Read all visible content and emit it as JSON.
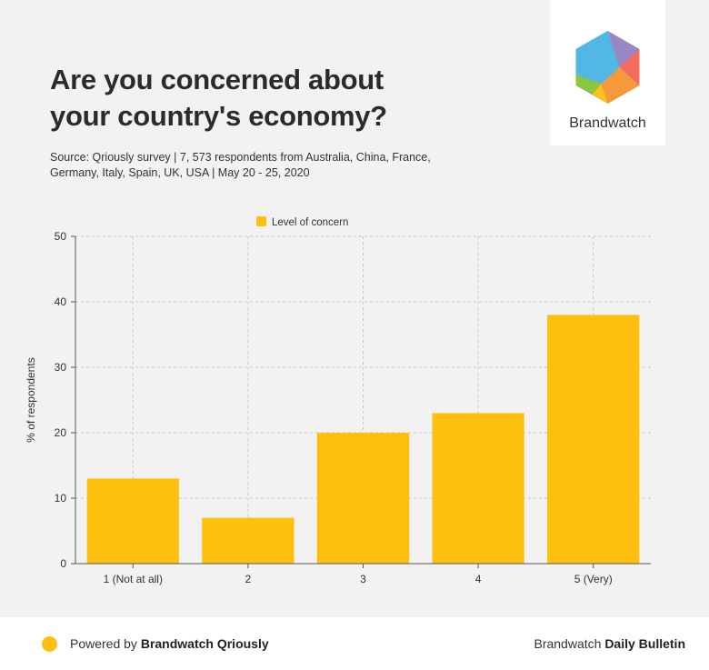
{
  "header": {
    "title_line1": "Are you concerned about",
    "title_line2": "your country's economy?",
    "source": "Source: Qriously survey | 7, 573 respondents from Australia, China, France, Germany, Italy, Spain, UK, USA | May 20 - 25, 2020"
  },
  "logo": {
    "name": "Brandwatch"
  },
  "footer": {
    "powered_prefix": "Powered by ",
    "powered_brand": "Brandwatch Qriously",
    "right_prefix": "Brandwatch ",
    "right_brand": "Daily Bulletin",
    "dot_color": "#ffbf0f"
  },
  "chart_data": {
    "type": "bar",
    "categories": [
      "1 (Not at all)",
      "2",
      "3",
      "4",
      "5 (Very)"
    ],
    "series": [
      {
        "name": "Level of concern",
        "values": [
          13,
          7,
          20,
          23,
          38
        ],
        "color": "#ffbf0f"
      }
    ],
    "ylabel": "% of respondents",
    "ylim": [
      0,
      50
    ],
    "yticks": [
      0,
      10,
      20,
      30,
      40,
      50
    ],
    "grid": true,
    "legend_position": "top-center"
  }
}
